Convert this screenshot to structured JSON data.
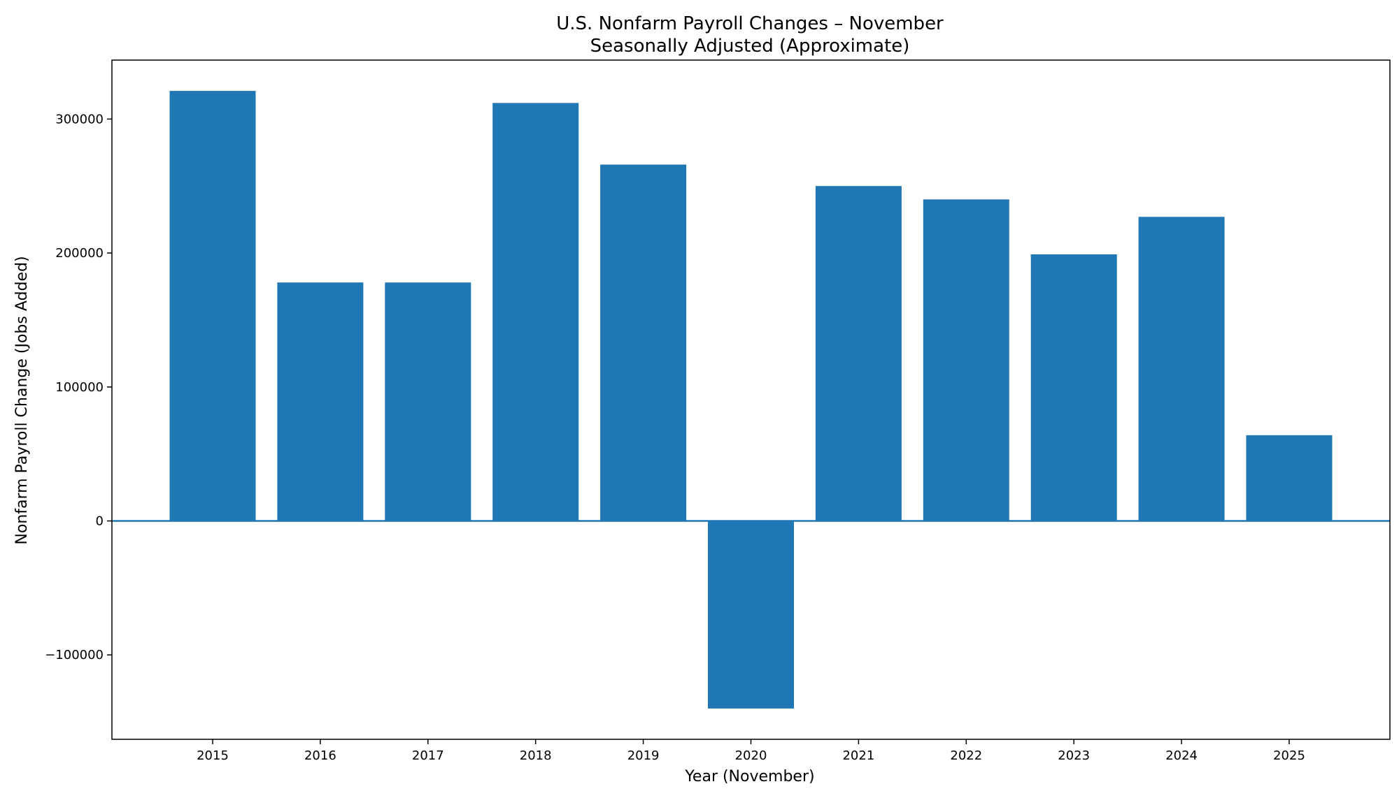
{
  "chart_data": {
    "type": "bar",
    "title": "U.S. Nonfarm Payroll Changes – November",
    "subtitle": "Seasonally Adjusted (Approximate)",
    "xlabel": "Year (November)",
    "ylabel": "Nonfarm Payroll Change (Jobs Added)",
    "categories": [
      "2015",
      "2016",
      "2017",
      "2018",
      "2019",
      "2020",
      "2021",
      "2022",
      "2023",
      "2024",
      "2025"
    ],
    "values": [
      321000,
      178000,
      178000,
      312000,
      266000,
      -140000,
      250000,
      240000,
      199000,
      227000,
      64000
    ],
    "ylim": [
      -163000,
      344000
    ],
    "yticks": [
      -100000,
      0,
      100000,
      200000,
      300000
    ],
    "ytick_labels": [
      "−100000",
      "0",
      "100000",
      "200000",
      "300000"
    ],
    "bar_color": "#1f77b4",
    "zero_line_color": "#1f77b4",
    "grid": false
  }
}
